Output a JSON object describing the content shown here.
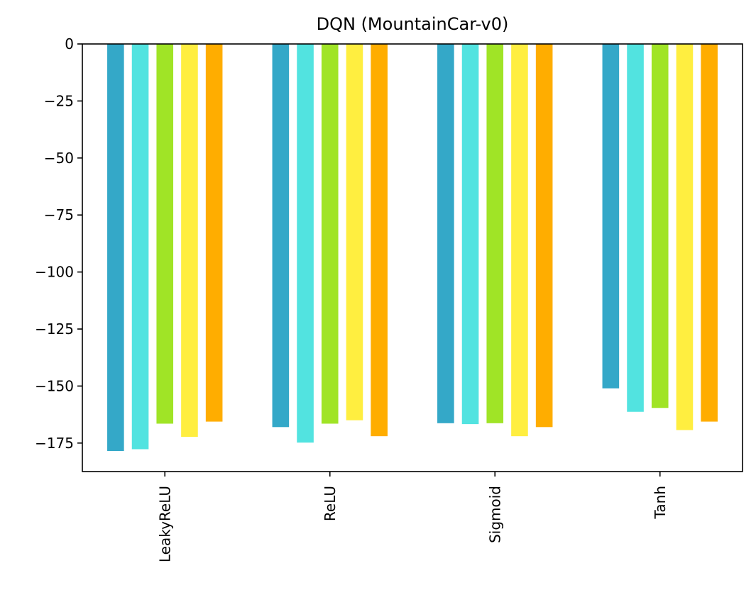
{
  "chart_data": {
    "type": "bar",
    "title": "DQN (MountainCar-v0)",
    "xlabel": "",
    "ylabel": "",
    "categories": [
      "LeakyReLU",
      "ReLU",
      "Sigmoid",
      "Tanh"
    ],
    "ylim": [
      -187.5,
      0
    ],
    "yticks": [
      0,
      -25,
      -50,
      -75,
      -100,
      -125,
      -150,
      -175
    ],
    "ytick_labels": [
      "0",
      "−25",
      "−50",
      "−75",
      "−100",
      "−125",
      "−150",
      "−175"
    ],
    "grid": false,
    "legend": "none",
    "series": [
      {
        "color": "#34a8c8",
        "values": [
          -178.5,
          -168,
          -166.3,
          -151
        ]
      },
      {
        "color": "#52e3e0",
        "values": [
          -177.7,
          -174.8,
          -166.7,
          -161.3
        ]
      },
      {
        "color": "#a0e426",
        "values": [
          -166.5,
          -166.5,
          -166.3,
          -159.6
        ]
      },
      {
        "color": "#ffee40",
        "values": [
          -172.3,
          -165,
          -172,
          -169.3
        ]
      },
      {
        "color": "#ffad00",
        "values": [
          -165.6,
          -172,
          -168,
          -165.6
        ]
      }
    ]
  }
}
